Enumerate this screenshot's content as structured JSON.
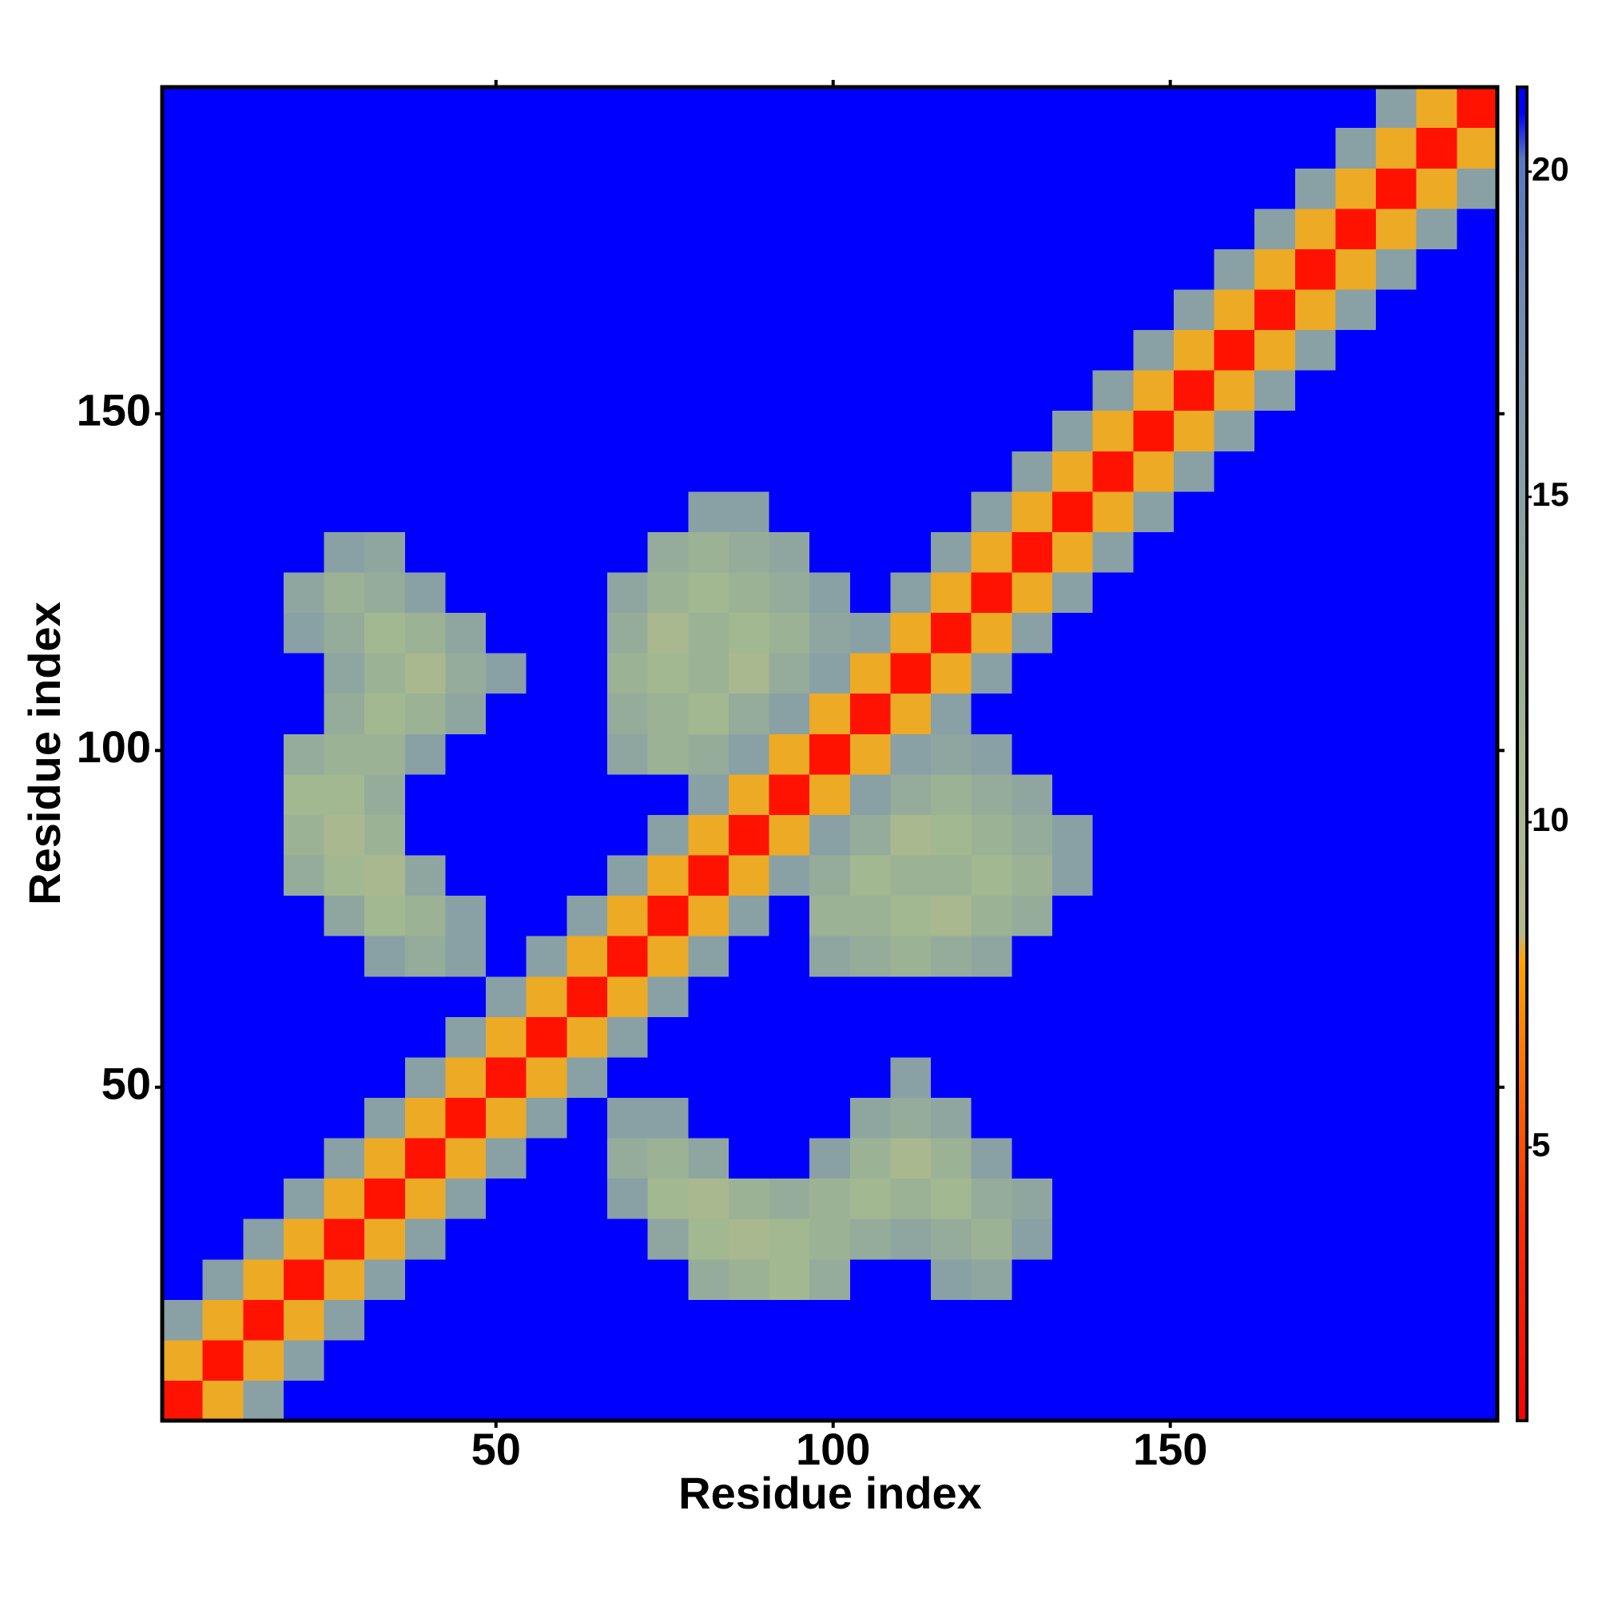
{
  "chart_data": {
    "type": "heatmap",
    "xlabel": "Residue index",
    "ylabel": "Residue index",
    "xlim": [
      0.5,
      198.5
    ],
    "ylim": [
      0.5,
      198.5
    ],
    "xticks": [
      50,
      100,
      150
    ],
    "yticks": [
      50,
      100,
      150
    ],
    "zlim": [
      0.8,
      21.3
    ],
    "zticks": [
      5,
      10,
      15,
      20
    ],
    "colorscale": [
      [
        0.8,
        "#ff0000"
      ],
      [
        4,
        "#ff3000"
      ],
      [
        7.9,
        "#ffa500"
      ],
      [
        8.3,
        "#b8b890"
      ],
      [
        11,
        "#a2b890"
      ],
      [
        17,
        "#7c94b0"
      ],
      [
        20.2,
        "#5878c0"
      ],
      [
        20.9,
        "#0000ff"
      ],
      [
        21.3,
        "#0000ff"
      ]
    ],
    "x": [
      3.5,
      9.5,
      15.5,
      21.5,
      27.5,
      33.5,
      39.5,
      45.5,
      51.5,
      57.5,
      63.5,
      69.5,
      75.5,
      81.5,
      87.5,
      93.5,
      99.5,
      105.5,
      111.5,
      117.5,
      123.5,
      129.5,
      135.5,
      141.5,
      147.5,
      153.5,
      159.5,
      165.5,
      171.5,
      177.5,
      183.5,
      189.5,
      195.5
    ],
    "y": [
      3.5,
      9.5,
      15.5,
      21.5,
      27.5,
      33.5,
      39.5,
      45.5,
      51.5,
      57.5,
      63.5,
      69.5,
      75.5,
      81.5,
      87.5,
      93.5,
      99.5,
      105.5,
      111.5,
      117.5,
      123.5,
      129.5,
      135.5,
      141.5,
      147.5,
      153.5,
      159.5,
      165.5,
      171.5,
      177.5,
      183.5,
      189.5,
      195.5
    ],
    "z": [
      [
        2,
        8,
        15,
        21,
        21,
        21,
        21,
        21,
        21,
        21,
        21,
        21,
        21,
        21,
        21,
        21,
        21,
        21,
        21,
        21,
        21,
        21,
        21,
        21,
        21,
        21,
        21,
        21,
        21,
        21,
        21,
        21,
        21
      ],
      [
        8,
        2,
        8,
        15,
        21,
        21,
        21,
        21,
        21,
        21,
        21,
        21,
        21,
        21,
        21,
        21,
        21,
        21,
        21,
        21,
        21,
        21,
        21,
        21,
        21,
        21,
        21,
        21,
        21,
        21,
        21,
        21,
        21
      ],
      [
        15,
        8,
        2,
        8,
        15,
        21,
        21,
        21,
        21,
        21,
        21,
        21,
        21,
        21,
        21,
        21,
        21,
        21,
        21,
        21,
        21,
        21,
        21,
        21,
        21,
        21,
        21,
        21,
        21,
        21,
        21,
        21,
        21
      ],
      [
        21,
        15,
        8,
        2,
        8,
        15,
        21,
        21,
        21,
        21,
        21,
        21,
        21,
        13,
        12,
        11,
        13,
        21,
        21,
        15,
        14,
        21,
        21,
        21,
        21,
        21,
        21,
        21,
        21,
        21,
        21,
        21,
        21
      ],
      [
        21,
        21,
        15,
        8,
        2,
        8,
        15,
        21,
        21,
        21,
        21,
        21,
        14,
        11,
        10,
        11,
        12,
        13,
        14,
        13,
        12,
        15,
        21,
        21,
        21,
        21,
        21,
        21,
        21,
        21,
        21,
        21,
        21
      ],
      [
        21,
        21,
        21,
        15,
        8,
        2,
        8,
        15,
        21,
        21,
        21,
        15,
        11,
        10,
        12,
        13,
        12,
        11,
        12,
        11,
        13,
        14,
        21,
        21,
        21,
        21,
        21,
        21,
        21,
        21,
        21,
        21,
        21
      ],
      [
        21,
        21,
        21,
        21,
        15,
        8,
        2,
        8,
        15,
        21,
        21,
        13,
        12,
        14,
        21,
        21,
        15,
        12,
        10,
        12,
        15,
        21,
        21,
        21,
        21,
        21,
        21,
        21,
        21,
        21,
        21,
        21,
        21
      ],
      [
        21,
        21,
        21,
        21,
        21,
        15,
        8,
        2,
        8,
        15,
        21,
        15,
        15,
        21,
        21,
        21,
        21,
        14,
        13,
        14,
        21,
        21,
        21,
        21,
        21,
        21,
        21,
        21,
        21,
        21,
        21,
        21,
        21
      ],
      [
        21,
        21,
        21,
        21,
        21,
        21,
        15,
        8,
        2,
        8,
        15,
        21,
        21,
        21,
        21,
        21,
        21,
        21,
        15,
        21,
        21,
        21,
        21,
        21,
        21,
        21,
        21,
        21,
        21,
        21,
        21,
        21,
        21
      ],
      [
        21,
        21,
        21,
        21,
        21,
        21,
        21,
        15,
        8,
        2,
        8,
        15,
        21,
        21,
        21,
        21,
        21,
        21,
        21,
        21,
        21,
        21,
        21,
        21,
        21,
        21,
        21,
        21,
        21,
        21,
        21,
        21,
        21
      ],
      [
        21,
        21,
        21,
        21,
        21,
        21,
        21,
        21,
        15,
        8,
        2,
        8,
        15,
        21,
        21,
        21,
        21,
        21,
        21,
        21,
        21,
        21,
        21,
        21,
        21,
        21,
        21,
        21,
        21,
        21,
        21,
        21,
        21
      ],
      [
        21,
        21,
        21,
        21,
        21,
        15,
        13,
        15,
        21,
        15,
        8,
        2,
        8,
        15,
        21,
        21,
        14,
        13,
        12,
        13,
        14,
        21,
        21,
        21,
        21,
        21,
        21,
        21,
        21,
        21,
        21,
        21,
        21
      ],
      [
        21,
        21,
        21,
        21,
        14,
        11,
        12,
        15,
        21,
        21,
        15,
        8,
        2,
        8,
        15,
        21,
        12,
        12,
        11,
        10,
        12,
        13,
        21,
        21,
        21,
        21,
        21,
        21,
        21,
        21,
        21,
        21,
        21
      ],
      [
        21,
        21,
        21,
        13,
        11,
        10,
        14,
        21,
        21,
        21,
        21,
        15,
        8,
        2,
        8,
        15,
        13,
        11,
        12,
        12,
        11,
        12,
        15,
        21,
        21,
        21,
        21,
        21,
        21,
        21,
        21,
        21,
        21
      ],
      [
        21,
        21,
        21,
        12,
        10,
        12,
        21,
        21,
        21,
        21,
        21,
        21,
        15,
        8,
        2,
        8,
        15,
        13,
        10,
        11,
        12,
        13,
        15,
        21,
        21,
        21,
        21,
        21,
        21,
        21,
        21,
        21,
        21
      ],
      [
        21,
        21,
        21,
        11,
        11,
        13,
        21,
        21,
        21,
        21,
        21,
        21,
        21,
        15,
        8,
        2,
        8,
        15,
        13,
        12,
        13,
        14,
        21,
        21,
        21,
        21,
        21,
        21,
        21,
        21,
        21,
        21,
        21
      ],
      [
        21,
        21,
        21,
        13,
        12,
        12,
        15,
        21,
        21,
        21,
        21,
        14,
        12,
        13,
        15,
        8,
        2,
        8,
        15,
        14,
        15,
        21,
        21,
        21,
        21,
        21,
        21,
        21,
        21,
        21,
        21,
        21,
        21
      ],
      [
        21,
        21,
        21,
        21,
        13,
        11,
        12,
        14,
        21,
        21,
        21,
        13,
        12,
        11,
        13,
        15,
        8,
        2,
        8,
        15,
        21,
        21,
        21,
        21,
        21,
        21,
        21,
        21,
        21,
        21,
        21,
        21,
        21
      ],
      [
        21,
        21,
        21,
        21,
        14,
        12,
        10,
        13,
        15,
        21,
        21,
        12,
        11,
        12,
        10,
        13,
        15,
        8,
        2,
        8,
        15,
        21,
        21,
        21,
        21,
        21,
        21,
        21,
        21,
        21,
        21,
        21,
        21
      ],
      [
        21,
        21,
        21,
        15,
        13,
        11,
        12,
        14,
        21,
        21,
        21,
        13,
        10,
        12,
        11,
        12,
        14,
        15,
        8,
        2,
        8,
        15,
        21,
        21,
        21,
        21,
        21,
        21,
        21,
        21,
        21,
        21,
        21
      ],
      [
        21,
        21,
        21,
        14,
        12,
        13,
        15,
        21,
        21,
        21,
        21,
        14,
        12,
        11,
        12,
        13,
        15,
        21,
        15,
        8,
        2,
        8,
        15,
        21,
        21,
        21,
        21,
        21,
        21,
        21,
        21,
        21,
        21
      ],
      [
        21,
        21,
        21,
        21,
        15,
        14,
        21,
        21,
        21,
        21,
        21,
        21,
        13,
        12,
        13,
        14,
        21,
        21,
        21,
        15,
        8,
        2,
        8,
        15,
        21,
        21,
        21,
        21,
        21,
        21,
        21,
        21,
        21
      ],
      [
        21,
        21,
        21,
        21,
        21,
        21,
        21,
        21,
        21,
        21,
        21,
        21,
        21,
        15,
        15,
        21,
        21,
        21,
        21,
        21,
        15,
        8,
        2,
        8,
        15,
        21,
        21,
        21,
        21,
        21,
        21,
        21,
        21
      ],
      [
        21,
        21,
        21,
        21,
        21,
        21,
        21,
        21,
        21,
        21,
        21,
        21,
        21,
        21,
        21,
        21,
        21,
        21,
        21,
        21,
        21,
        15,
        8,
        2,
        8,
        15,
        21,
        21,
        21,
        21,
        21,
        21,
        21
      ],
      [
        21,
        21,
        21,
        21,
        21,
        21,
        21,
        21,
        21,
        21,
        21,
        21,
        21,
        21,
        21,
        21,
        21,
        21,
        21,
        21,
        21,
        21,
        15,
        8,
        2,
        8,
        15,
        21,
        21,
        21,
        21,
        21,
        21
      ],
      [
        21,
        21,
        21,
        21,
        21,
        21,
        21,
        21,
        21,
        21,
        21,
        21,
        21,
        21,
        21,
        21,
        21,
        21,
        21,
        21,
        21,
        21,
        21,
        15,
        8,
        2,
        8,
        15,
        21,
        21,
        21,
        21,
        21
      ],
      [
        21,
        21,
        21,
        21,
        21,
        21,
        21,
        21,
        21,
        21,
        21,
        21,
        21,
        21,
        21,
        21,
        21,
        21,
        21,
        21,
        21,
        21,
        21,
        21,
        15,
        8,
        2,
        8,
        15,
        21,
        21,
        21,
        21
      ],
      [
        21,
        21,
        21,
        21,
        21,
        21,
        21,
        21,
        21,
        21,
        21,
        21,
        21,
        21,
        21,
        21,
        21,
        21,
        21,
        21,
        21,
        21,
        21,
        21,
        21,
        15,
        8,
        2,
        8,
        15,
        21,
        21,
        21
      ],
      [
        21,
        21,
        21,
        21,
        21,
        21,
        21,
        21,
        21,
        21,
        21,
        21,
        21,
        21,
        21,
        21,
        21,
        21,
        21,
        21,
        21,
        21,
        21,
        21,
        21,
        21,
        15,
        8,
        2,
        8,
        15,
        21,
        21
      ],
      [
        21,
        21,
        21,
        21,
        21,
        21,
        21,
        21,
        21,
        21,
        21,
        21,
        21,
        21,
        21,
        21,
        21,
        21,
        21,
        21,
        21,
        21,
        21,
        21,
        21,
        21,
        21,
        15,
        8,
        2,
        8,
        15,
        21
      ],
      [
        21,
        21,
        21,
        21,
        21,
        21,
        21,
        21,
        21,
        21,
        21,
        21,
        21,
        21,
        21,
        21,
        21,
        21,
        21,
        21,
        21,
        21,
        21,
        21,
        21,
        21,
        21,
        21,
        15,
        8,
        2,
        8,
        15
      ],
      [
        21,
        21,
        21,
        21,
        21,
        21,
        21,
        21,
        21,
        21,
        21,
        21,
        21,
        21,
        21,
        21,
        21,
        21,
        21,
        21,
        21,
        21,
        21,
        21,
        21,
        21,
        21,
        21,
        21,
        15,
        8,
        2,
        8
      ],
      [
        21,
        21,
        21,
        21,
        21,
        21,
        21,
        21,
        21,
        21,
        21,
        21,
        21,
        21,
        21,
        21,
        21,
        21,
        21,
        21,
        21,
        21,
        21,
        21,
        21,
        21,
        21,
        21,
        21,
        21,
        15,
        8,
        2
      ]
    ]
  }
}
